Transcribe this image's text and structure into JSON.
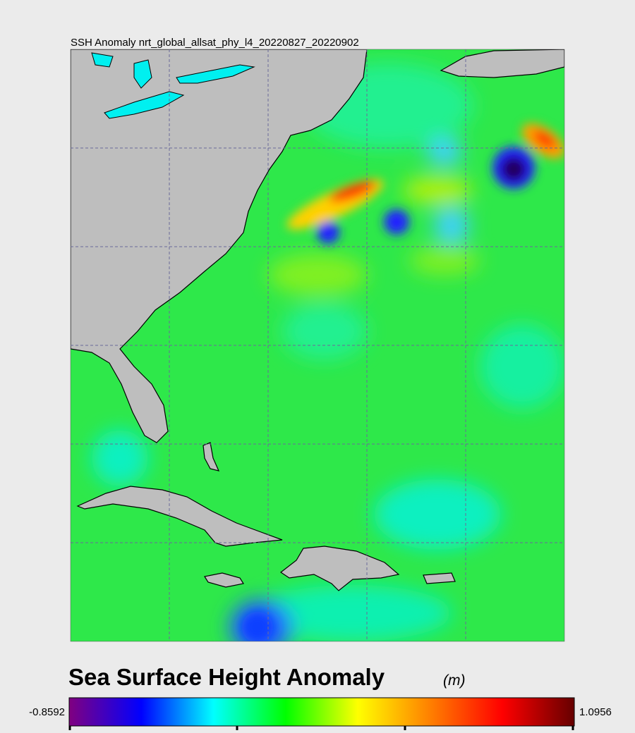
{
  "header": {
    "title": "SSH Anomaly nrt_global_allsat_phy_l4_20220827_20220902"
  },
  "colorbar": {
    "title": "Sea Surface Height Anomaly",
    "unit": "(m)",
    "min": -0.8592,
    "max": 1.0956,
    "colors": [
      "#800080",
      "#0000ff",
      "#00ffff",
      "#00ff00",
      "#ffff00",
      "#ff8000",
      "#ff0000",
      "#660000"
    ]
  }
}
